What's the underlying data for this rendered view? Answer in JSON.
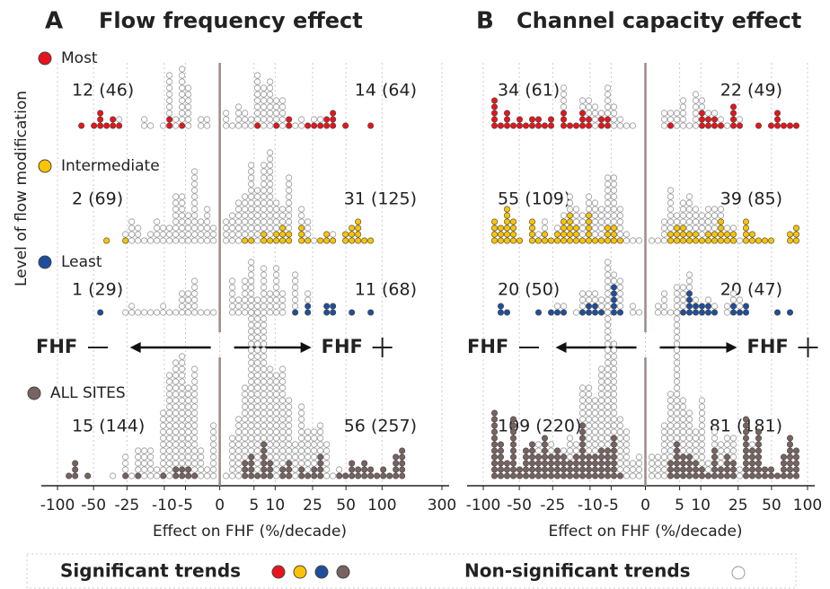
{
  "y_axis_label": "Level of flow modification",
  "legend": {
    "significant_label": "Significant trends",
    "nonsignificant_label": "Non-significant trends",
    "nonsignificant_color": "#ffffff"
  },
  "panels": [
    {
      "letter": "A",
      "title": "Flow frequency  effect",
      "xlabel": "Effect on FHF (%/decade)",
      "arrow_left": "FHF",
      "arrow_right": "FHF",
      "xlim": [
        -100,
        300
      ],
      "xticks": [
        -100,
        -50,
        -25,
        -10,
        -5,
        0,
        5,
        10,
        25,
        50,
        100,
        300
      ],
      "rows": [
        {
          "label": "Most",
          "color": "#e8141b",
          "neg": {
            "label": "12 (46)",
            "significant": 12,
            "total": 46
          },
          "pos": {
            "label": "14 (64)",
            "significant": 14,
            "total": 64
          }
        },
        {
          "label": "Intermediate",
          "color": "#fcc400",
          "neg": {
            "label": "2 (69)",
            "significant": 2,
            "total": 69
          },
          "pos": {
            "label": "31 (125)",
            "significant": 31,
            "total": 125
          }
        },
        {
          "label": "Least",
          "color": "#1f4e9c",
          "neg": {
            "label": "1 (29)",
            "significant": 1,
            "total": 29
          },
          "pos": {
            "label": "11 (68)",
            "significant": 11,
            "total": 68
          }
        },
        {
          "label": "ALL SITES",
          "color": "#776360",
          "neg": {
            "label": "15 (144)",
            "significant": 15,
            "total": 144
          },
          "pos": {
            "label": "56 (257)",
            "significant": 56,
            "total": 257
          }
        }
      ]
    },
    {
      "letter": "B",
      "title": "Channel capacity effect",
      "xlabel": "Effect on FHF (%/decade)",
      "arrow_left": "FHF",
      "arrow_right": "FHF",
      "xlim": [
        -100,
        100
      ],
      "xticks": [
        -100,
        -50,
        -25,
        -10,
        -5,
        0,
        5,
        10,
        25,
        50,
        100
      ],
      "rows": [
        {
          "color": "#e8141b",
          "neg": {
            "label": "34 (61)",
            "significant": 34,
            "total": 61
          },
          "pos": {
            "label": "22 (49)",
            "significant": 22,
            "total": 49
          }
        },
        {
          "color": "#fcc400",
          "neg": {
            "label": "55 (109)",
            "significant": 55,
            "total": 109
          },
          "pos": {
            "label": "39 (85)",
            "significant": 39,
            "total": 85
          }
        },
        {
          "color": "#1f4e9c",
          "neg": {
            "label": "20 (50)",
            "significant": 20,
            "total": 50
          },
          "pos": {
            "label": "20 (47)",
            "significant": 20,
            "total": 47
          }
        },
        {
          "color": "#776360",
          "neg": {
            "label": "109 (220)",
            "significant": 109,
            "total": 220
          },
          "pos": {
            "label": "81 (181)",
            "significant": 81,
            "total": 181
          }
        }
      ]
    }
  ]
}
